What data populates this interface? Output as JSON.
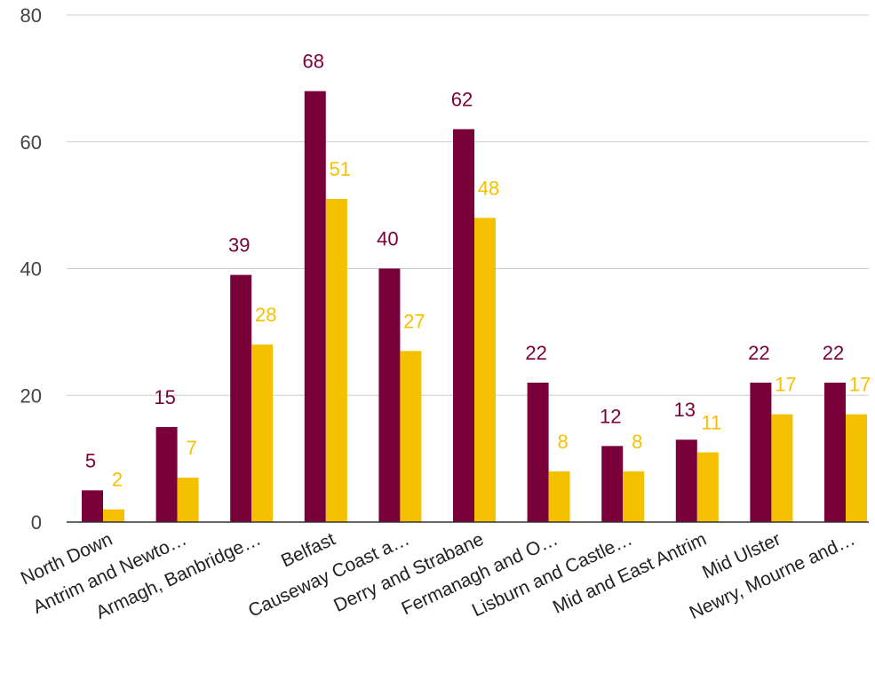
{
  "chart_data": {
    "type": "bar",
    "title": "",
    "xlabel": "",
    "ylabel": "",
    "ylim": [
      0,
      80
    ],
    "yticks": [
      0,
      20,
      40,
      60,
      80
    ],
    "grid": true,
    "legend": "none",
    "categories": [
      "North Down",
      "Antrim and Newto…",
      "Armagh, Banbridge…",
      "Belfast",
      "Causeway Coast a…",
      "Derry and Strabane",
      "Fermanagh and O…",
      "Lisburn and Castle…",
      "Mid and East Antrim",
      "Mid Ulster",
      "Newry, Mourne and…"
    ],
    "series": [
      {
        "color": "#7a0039",
        "values": [
          5,
          15,
          39,
          68,
          40,
          62,
          22,
          12,
          13,
          22,
          22
        ]
      },
      {
        "color": "#f5c000",
        "values": [
          2,
          7,
          28,
          51,
          27,
          48,
          8,
          8,
          11,
          17,
          17
        ]
      }
    ]
  }
}
